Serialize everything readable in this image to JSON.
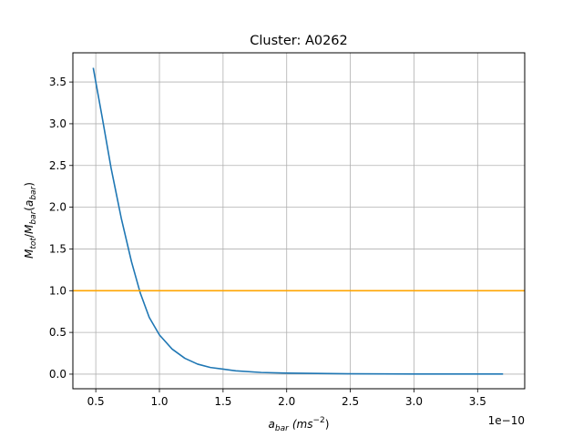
{
  "chart_data": {
    "type": "line",
    "title": "Cluster: A0262",
    "xlabel": {
      "base": "a",
      "sub": "bar",
      "units_pre": "(ms",
      "units_sup": "−2",
      "units_post": ")"
    },
    "ylabel": {
      "m1": "M",
      "s1": "tot",
      "slash": "/",
      "m2": "M",
      "s2": "bar",
      "open": "(",
      "a": "a",
      "s3": "bar",
      "close": ")"
    },
    "x_offset_label": "1e−10",
    "x_scale_factor": 1e-10,
    "xlim": [
      0.32,
      3.87
    ],
    "ylim": [
      -0.175,
      3.85
    ],
    "xticks": [
      0.5,
      1.0,
      1.5,
      2.0,
      2.5,
      3.0,
      3.5
    ],
    "xtick_labels": [
      "0.5",
      "1.0",
      "1.5",
      "2.0",
      "2.5",
      "3.0",
      "3.5"
    ],
    "yticks": [
      0.0,
      0.5,
      1.0,
      1.5,
      2.0,
      2.5,
      3.0,
      3.5
    ],
    "ytick_labels": [
      "0.0",
      "0.5",
      "1.0",
      "1.5",
      "2.0",
      "2.5",
      "3.0",
      "3.5"
    ],
    "grid": true,
    "series": [
      {
        "color": "#1f77b4",
        "x": [
          0.48,
          0.55,
          0.62,
          0.7,
          0.78,
          0.85,
          0.92,
          1.0,
          1.1,
          1.2,
          1.3,
          1.4,
          1.5,
          1.6,
          1.8,
          2.0,
          2.5,
          3.0,
          3.5,
          3.7
        ],
        "y": [
          3.67,
          3.08,
          2.47,
          1.87,
          1.35,
          0.97,
          0.68,
          0.47,
          0.3,
          0.19,
          0.12,
          0.08,
          0.06,
          0.04,
          0.02,
          0.012,
          0.004,
          0.002,
          0.001,
          0.001
        ]
      },
      {
        "color": "#ffa500",
        "x": [
          0.32,
          3.87
        ],
        "y": [
          1.0,
          1.0
        ]
      }
    ]
  }
}
